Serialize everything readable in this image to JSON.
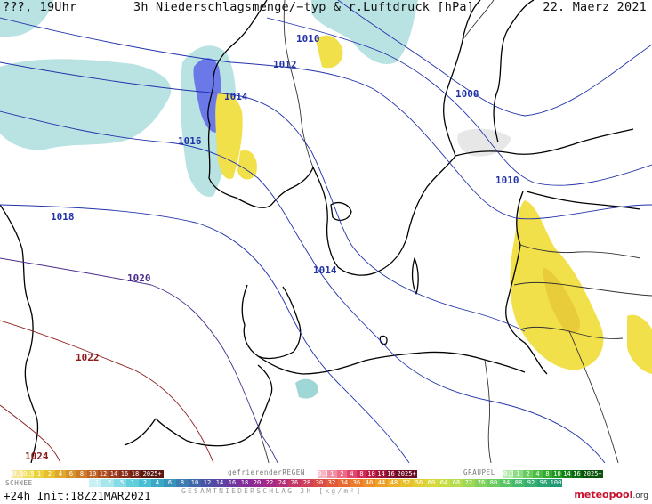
{
  "header": {
    "left": "???, 19Uhr",
    "title": "3h Niederschlagsmenge/−typ & r.Luftdruck [hPa]",
    "date": "22. Maerz 2021"
  },
  "isobars": [
    {
      "label": "1008",
      "color": "#2233aa"
    },
    {
      "label": "1010",
      "color": "#2233aa"
    },
    {
      "label": "1010",
      "color": "#2233aa"
    },
    {
      "label": "1012",
      "color": "#2233aa"
    },
    {
      "label": "1014",
      "color": "#2233aa"
    },
    {
      "label": "1014",
      "color": "#2233aa"
    },
    {
      "label": "1016",
      "color": "#2233aa"
    },
    {
      "label": "1018",
      "color": "#2233aa"
    },
    {
      "label": "1020",
      "color": "#4a2a8a"
    },
    {
      "label": "1022",
      "color": "#8b1a1a"
    },
    {
      "label": "1024",
      "color": "#8b1a1a"
    }
  ],
  "legend": {
    "rain_scale": [
      "0.1",
      "0.5",
      "1",
      "2",
      "4",
      "6",
      "8",
      "10",
      "12",
      "14",
      "16",
      "18",
      "2025+"
    ],
    "freezing_rain_label": "gefrierenderREGEN",
    "freezing_scale": [
      "0.1",
      "1",
      "2",
      "4",
      "8",
      "10",
      "14",
      "16",
      "2025+"
    ],
    "graupel_label": "GRAUPEL",
    "graupel_scale": [
      "0.1",
      "1",
      "2",
      "4",
      "8",
      "10",
      "14",
      "16",
      "2025+"
    ],
    "snow_label": "SCHNEE",
    "snow_scale": [
      ".1",
      ".2",
      ".5",
      "1",
      "2",
      "4",
      "6",
      "8",
      "10",
      "12",
      "14",
      "16",
      "18",
      "20",
      "22",
      "24",
      "26",
      "28",
      "30",
      "32",
      "34",
      "36",
      "40",
      "44",
      "48",
      "52",
      "56",
      "60",
      "64",
      "68",
      "72",
      "76",
      "80",
      "84",
      "88",
      "92",
      "96",
      "100"
    ],
    "sum_label": "GESAMTNIEDERSCHLAG 3h [kg/m²]"
  },
  "footer": {
    "forecast": "+24h Init:18Z21MAR2021",
    "brand_main": "meteopool",
    "brand_suffix": ".org"
  },
  "colors": {
    "rain_light": "#b8e0e0",
    "rain_yellow": "#f2e04a",
    "snow_blue": "#6a78e8",
    "isobar_blue": "#2233aa",
    "isobar_red": "#8b1a1a"
  }
}
